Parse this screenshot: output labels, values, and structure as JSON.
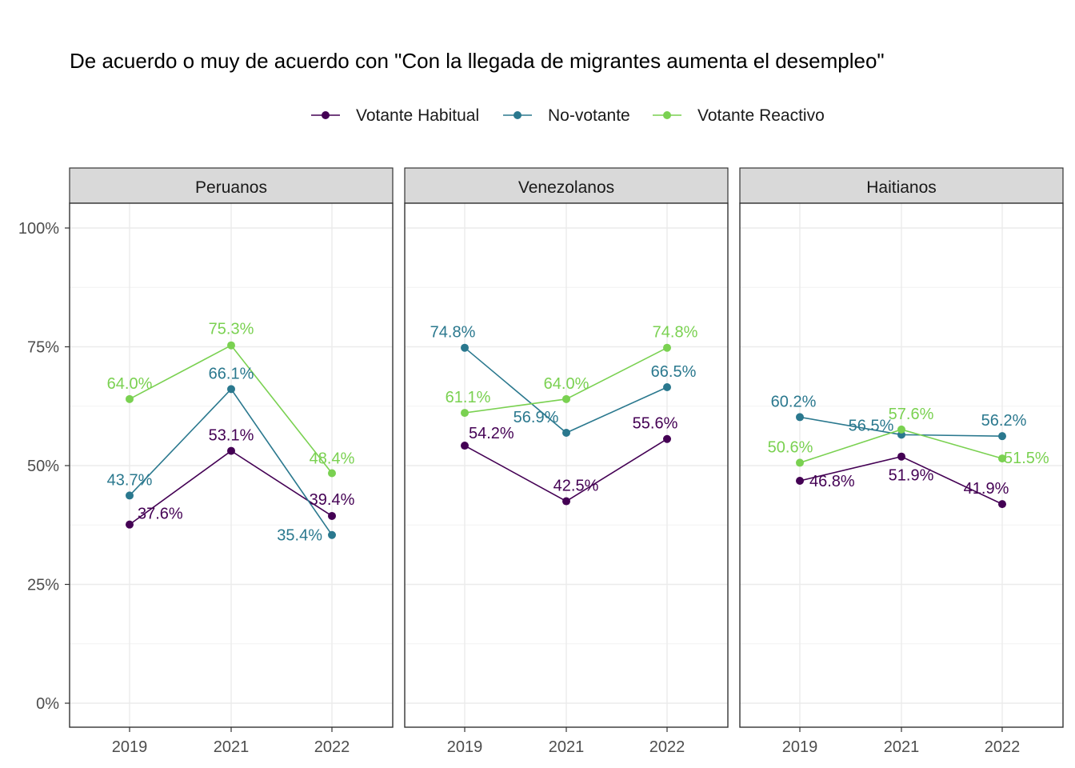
{
  "chart_data": {
    "type": "line",
    "title": "De acuerdo o muy de acuerdo con \"Con la llegada de migrantes aumenta el desempleo\"",
    "legend": {
      "position": "top",
      "entries": [
        {
          "name": "Votante Habitual",
          "color": "#440154"
        },
        {
          "name": "No-votante",
          "color": "#2A788E"
        },
        {
          "name": "Votante Reactivo",
          "color": "#7AD151"
        }
      ]
    },
    "x": [
      "2019",
      "2021",
      "2022"
    ],
    "ylim": [
      0,
      100
    ],
    "yticks": [
      0,
      25,
      50,
      75,
      100
    ],
    "ytick_labels": [
      "0%",
      "25%",
      "50%",
      "75%",
      "100%"
    ],
    "grid": true,
    "panels": [
      {
        "name": "Peruanos",
        "series": [
          {
            "name": "Votante Habitual",
            "values": [
              37.6,
              53.1,
              39.4
            ],
            "labels": [
              "37.6%",
              "53.1%",
              "39.4%"
            ]
          },
          {
            "name": "No-votante",
            "values": [
              43.7,
              66.1,
              35.4
            ],
            "labels": [
              "43.7%",
              "66.1%",
              "35.4%"
            ]
          },
          {
            "name": "Votante Reactivo",
            "values": [
              64.0,
              75.3,
              48.4
            ],
            "labels": [
              "64.0%",
              "75.3%",
              "48.4%"
            ]
          }
        ]
      },
      {
        "name": "Venezolanos",
        "series": [
          {
            "name": "Votante Habitual",
            "values": [
              54.2,
              42.5,
              55.6
            ],
            "labels": [
              "54.2%",
              "42.5%",
              "55.6%"
            ]
          },
          {
            "name": "No-votante",
            "values": [
              74.8,
              56.9,
              66.5
            ],
            "labels": [
              "74.8%",
              "56.9%",
              "66.5%"
            ]
          },
          {
            "name": "Votante Reactivo",
            "values": [
              61.1,
              64.0,
              74.8
            ],
            "labels": [
              "61.1%",
              "64.0%",
              "74.8%"
            ]
          }
        ]
      },
      {
        "name": "Haitianos",
        "series": [
          {
            "name": "Votante Habitual",
            "values": [
              46.8,
              51.9,
              41.9
            ],
            "labels": [
              "46.8%",
              "51.9%",
              "41.9%"
            ]
          },
          {
            "name": "No-votante",
            "values": [
              60.2,
              56.5,
              56.2
            ],
            "labels": [
              "60.2%",
              "56.5%",
              "56.2%"
            ]
          },
          {
            "name": "Votante Reactivo",
            "values": [
              50.6,
              57.6,
              51.5
            ],
            "labels": [
              "50.6%",
              "57.6%",
              "51.5%"
            ]
          }
        ]
      }
    ]
  }
}
